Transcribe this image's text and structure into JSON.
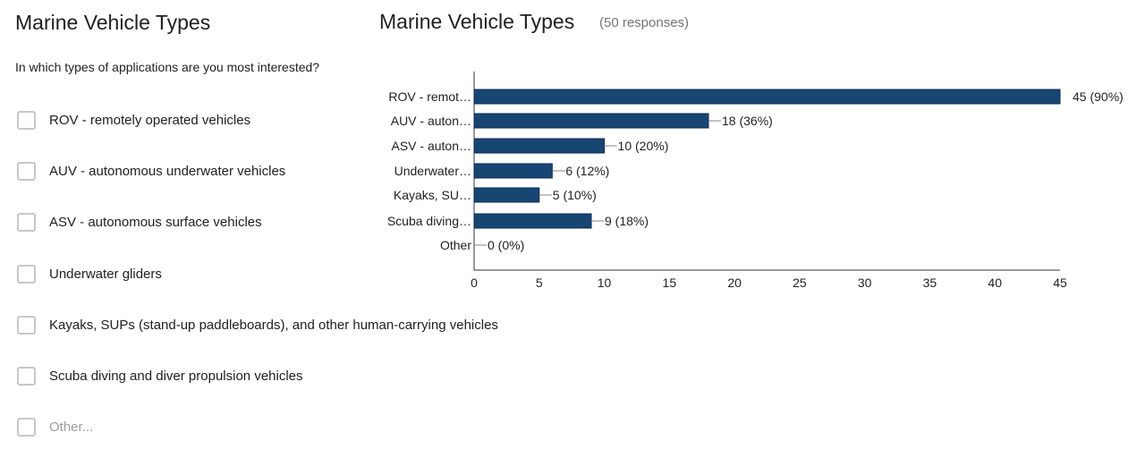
{
  "form": {
    "title": "Marine Vehicle Types",
    "question": "In which types of applications are you most interested?",
    "options": [
      {
        "label": "ROV - remotely operated vehicles",
        "checked": false
      },
      {
        "label": "AUV - autonomous underwater vehicles",
        "checked": false
      },
      {
        "label": "ASV - autonomous surface vehicles",
        "checked": false
      },
      {
        "label": "Underwater gliders",
        "checked": false
      },
      {
        "label": "Kayaks, SUPs (stand-up paddleboards), and other human-carrying vehicles",
        "checked": false
      },
      {
        "label": "Scuba diving and diver propulsion vehicles",
        "checked": false
      },
      {
        "label": "Other...",
        "checked": false
      }
    ]
  },
  "summary": {
    "title": "Marine Vehicle Types",
    "responses": "(50 responses)"
  },
  "colors": {
    "bar": "#174673",
    "bar_border": "#0d2a55",
    "axis": "#333333",
    "leader": "#888888"
  },
  "chart_data": {
    "type": "bar",
    "orientation": "horizontal",
    "title": "Marine Vehicle Types",
    "categories": [
      "ROV - remot…",
      "AUV - auton…",
      "ASV - auton…",
      "Underwater…",
      "Kayaks, SU…",
      "Scuba diving…",
      "Other"
    ],
    "values": [
      45,
      18,
      10,
      6,
      5,
      9,
      0
    ],
    "data_labels": [
      "45 (90%)",
      "18 (36%)",
      "10 (20%)",
      "6 (12%)",
      "5 (10%)",
      "9 (18%)",
      "0 (0%)"
    ],
    "xlim": [
      0,
      45
    ],
    "xticks": [
      "0",
      "5",
      "10",
      "15",
      "20",
      "25",
      "30",
      "35",
      "40",
      "45"
    ],
    "xtick_values": [
      0,
      5,
      10,
      15,
      20,
      25,
      30,
      35,
      40,
      45
    ],
    "grid": false,
    "legend": "none"
  }
}
